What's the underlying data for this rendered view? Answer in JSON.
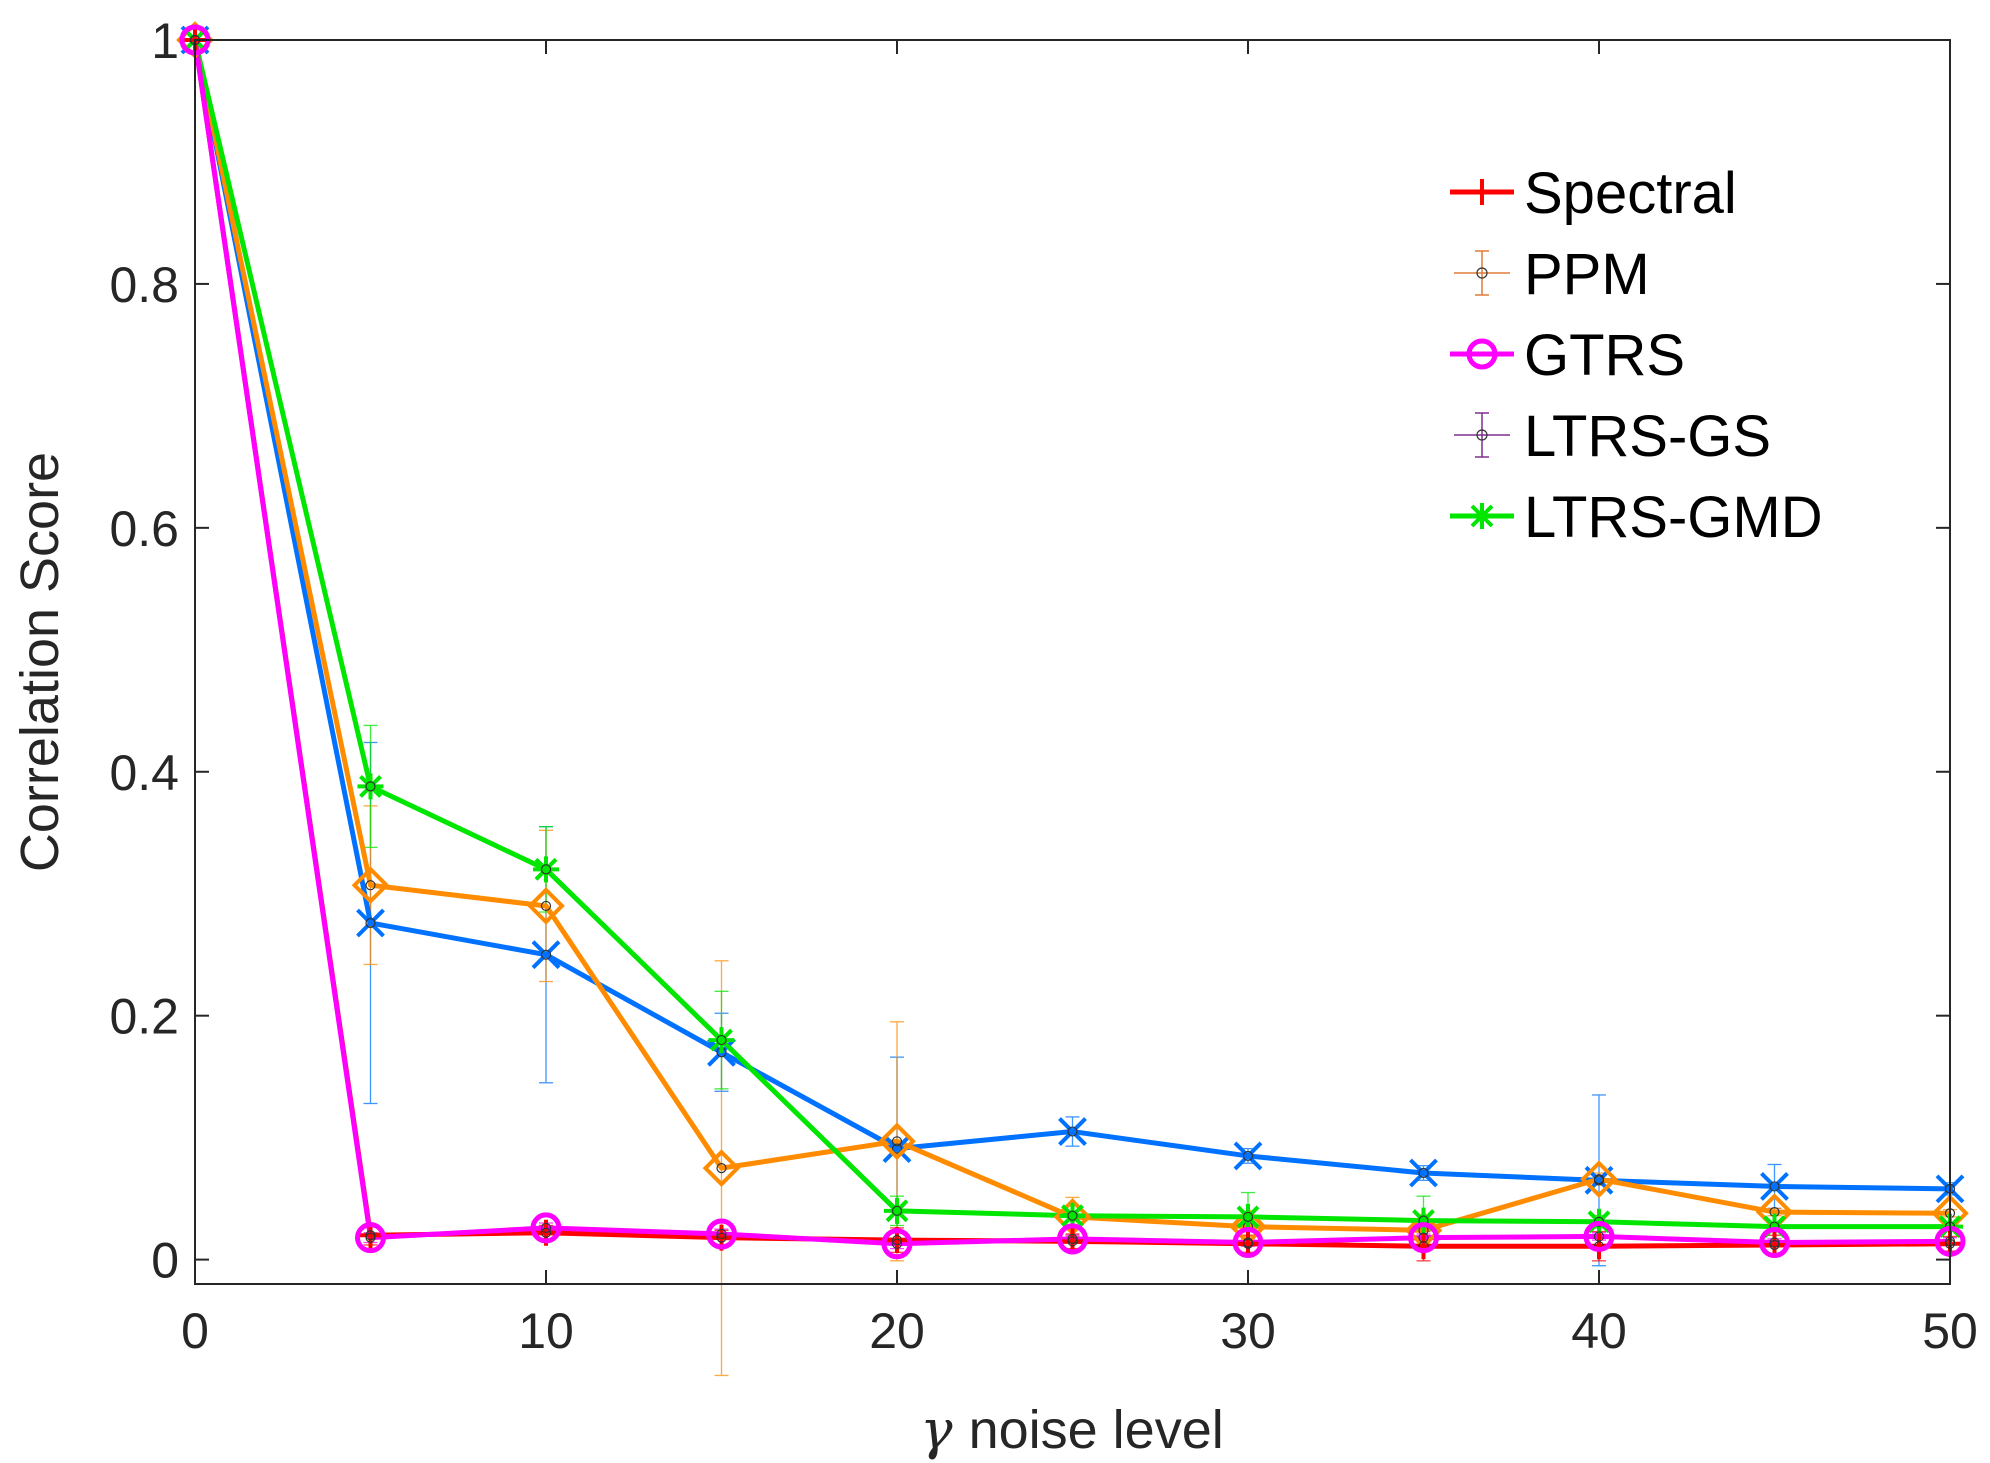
{
  "chart_data": {
    "type": "line",
    "xlabel_symbol": "γ",
    "xlabel": "noise level",
    "ylabel": "Correlation Score",
    "xlim": [
      0,
      50
    ],
    "ylim": [
      -0.02,
      1
    ],
    "x_ticks": [
      "0",
      "10",
      "20",
      "30",
      "40",
      "50"
    ],
    "y_ticks": [
      "0",
      "0.2",
      "0.4",
      "0.6",
      "0.8",
      "1"
    ],
    "x": [
      0,
      5,
      10,
      15,
      20,
      25,
      30,
      35,
      40,
      45,
      50
    ],
    "legend_position": "top-right",
    "grid": false,
    "series": [
      {
        "name": "LTRS-GS",
        "color": "#0072ff",
        "marker": "x",
        "in_legend": true,
        "values": [
          1.0,
          0.276,
          0.25,
          0.17,
          0.091,
          0.105,
          0.085,
          0.071,
          0.065,
          0.06,
          0.058
        ],
        "errors": [
          0,
          0.148,
          0.105,
          0.032,
          0.075,
          0.012,
          0.006,
          0.006,
          0.07,
          0.018,
          0.005
        ]
      },
      {
        "name": "PPM",
        "color": "#ff8c00",
        "marker": "diamond",
        "in_legend": true,
        "values": [
          1.0,
          0.307,
          0.29,
          0.075,
          0.097,
          0.035,
          0.027,
          0.024,
          0.066,
          0.039,
          0.038
        ],
        "errors": [
          0,
          0.065,
          0.062,
          0.17,
          0.098,
          0.016,
          0.008,
          0.005,
          0.005,
          0.003,
          0.003
        ]
      },
      {
        "name": "LTRS-GMD",
        "color": "#00e600",
        "marker": "asterisk",
        "in_legend": true,
        "values": [
          1.0,
          0.388,
          0.32,
          0.18,
          0.04,
          0.036,
          0.035,
          0.032,
          0.031,
          0.027,
          0.027
        ],
        "errors": [
          0,
          0.05,
          0.035,
          0.04,
          0.012,
          0.008,
          0.02,
          0.02,
          0.005,
          0.004,
          0.003
        ]
      },
      {
        "name": "Spectral",
        "color": "#ff0000",
        "marker": "plus",
        "in_legend": true,
        "values": [
          1.0,
          0.02,
          0.022,
          0.018,
          0.016,
          0.015,
          0.013,
          0.011,
          0.011,
          0.012,
          0.013
        ],
        "errors": [
          0,
          0.008,
          0.006,
          0.006,
          0.01,
          0.006,
          0.007,
          0.012,
          0.012,
          0.008,
          0.006
        ]
      },
      {
        "name": "GTRS",
        "color": "#ff00ff",
        "marker": "circle",
        "in_legend": true,
        "values": [
          1.0,
          0.018,
          0.026,
          0.021,
          0.013,
          0.017,
          0.014,
          0.018,
          0.019,
          0.014,
          0.015
        ],
        "errors": [
          0,
          0.004,
          0.004,
          0.004,
          0.004,
          0.003,
          0.003,
          0.003,
          0.003,
          0.003,
          0.003
        ]
      }
    ],
    "legend_order": [
      "Spectral",
      "PPM",
      "GTRS",
      "LTRS-GS",
      "LTRS-GMD"
    ]
  }
}
